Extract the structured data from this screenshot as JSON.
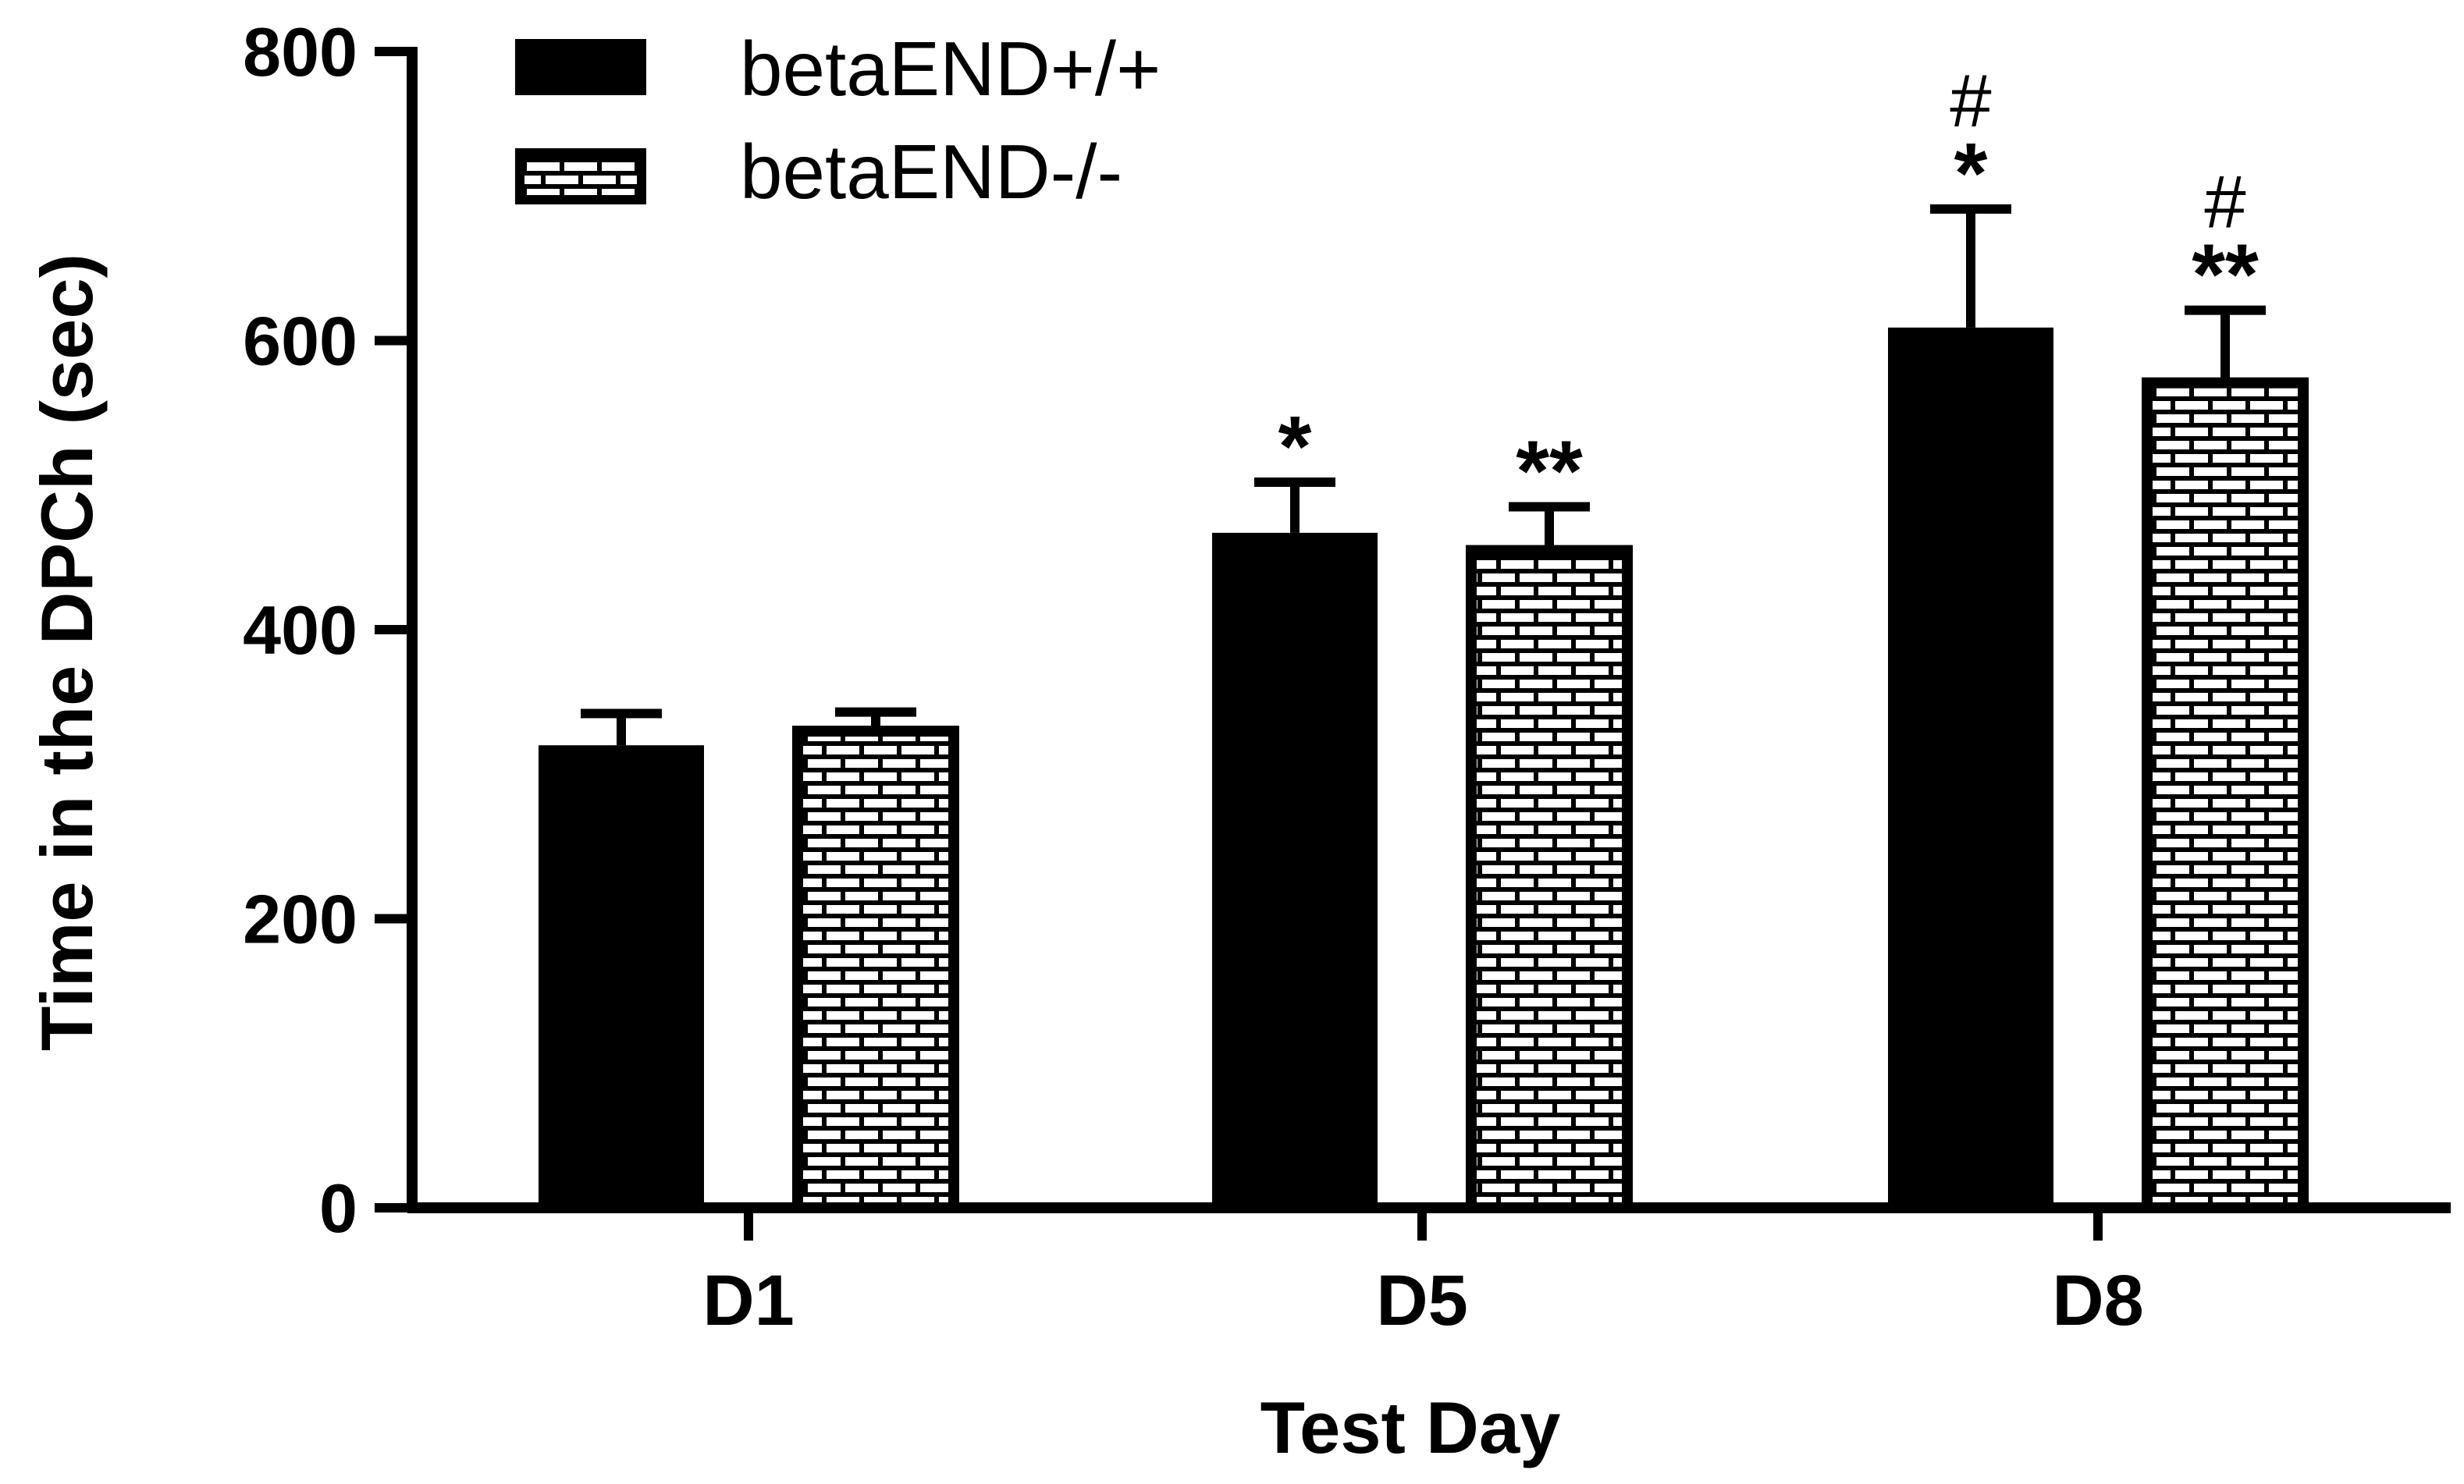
{
  "chart_data": {
    "type": "bar",
    "title": "",
    "xlabel": "Test Day",
    "ylabel": "Time in the DPCh (sec)",
    "ylim": [
      0,
      800
    ],
    "yticks": [
      0,
      200,
      400,
      600,
      800
    ],
    "ytick_labels": [
      "0",
      "200",
      "400",
      "600",
      "800"
    ],
    "grid": false,
    "legend_position": "top-left",
    "categories": [
      "D1",
      "D5",
      "D8"
    ],
    "series": [
      {
        "name": "betaEND+/+",
        "fill": "solid",
        "values": [
          320,
          467,
          609
        ],
        "errors": [
          22,
          35,
          82
        ],
        "annotations": [
          "",
          "*",
          "*"
        ],
        "annotations_top": [
          "",
          "",
          "#"
        ]
      },
      {
        "name": "betaEND-/-",
        "fill": "brick",
        "values": [
          333,
          458,
          574
        ],
        "errors": [
          10,
          27,
          47
        ],
        "annotations": [
          "",
          "**",
          "**"
        ],
        "annotations_top": [
          "",
          "",
          "#"
        ]
      }
    ],
    "colors": {
      "bar": "#000000",
      "hatch_background": "#ffffff",
      "axis": "#000000"
    }
  }
}
